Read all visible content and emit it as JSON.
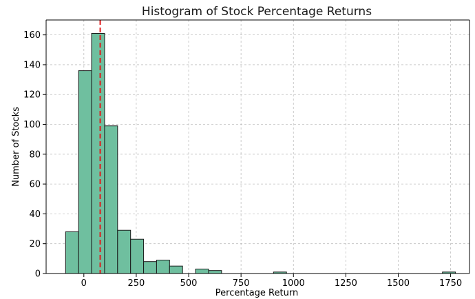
{
  "chart_data": {
    "type": "bar",
    "title": "Histogram of Stock Percentage Returns",
    "xlabel": "Percentage Return",
    "ylabel": "Number of Stocks",
    "bin_edges": [
      -87,
      -25,
      37,
      99,
      161,
      223,
      285,
      347,
      409,
      471,
      533,
      595,
      657,
      719,
      781,
      843,
      905,
      967,
      1029,
      1091,
      1153,
      1215,
      1277,
      1339,
      1401,
      1463,
      1525,
      1587,
      1649,
      1711,
      1773
    ],
    "values": [
      28,
      136,
      161,
      99,
      29,
      23,
      8,
      9,
      5,
      0,
      3,
      2,
      0,
      0,
      0,
      0,
      1,
      0,
      0,
      0,
      0,
      0,
      0,
      0,
      0,
      0,
      0,
      0,
      0,
      1
    ],
    "xlim": [
      -180,
      1840
    ],
    "ylim": [
      0,
      170
    ],
    "x_ticks": [
      0,
      250,
      500,
      750,
      1000,
      1250,
      1500,
      1750
    ],
    "y_ticks": [
      0,
      20,
      40,
      60,
      80,
      100,
      120,
      140,
      160
    ],
    "reference_line": {
      "x": 78
    },
    "grid": true,
    "colors": {
      "bar_fill": "#6fbf9f",
      "bar_edge": "#1a1a1a",
      "reference_line": "#e31a1c"
    }
  }
}
